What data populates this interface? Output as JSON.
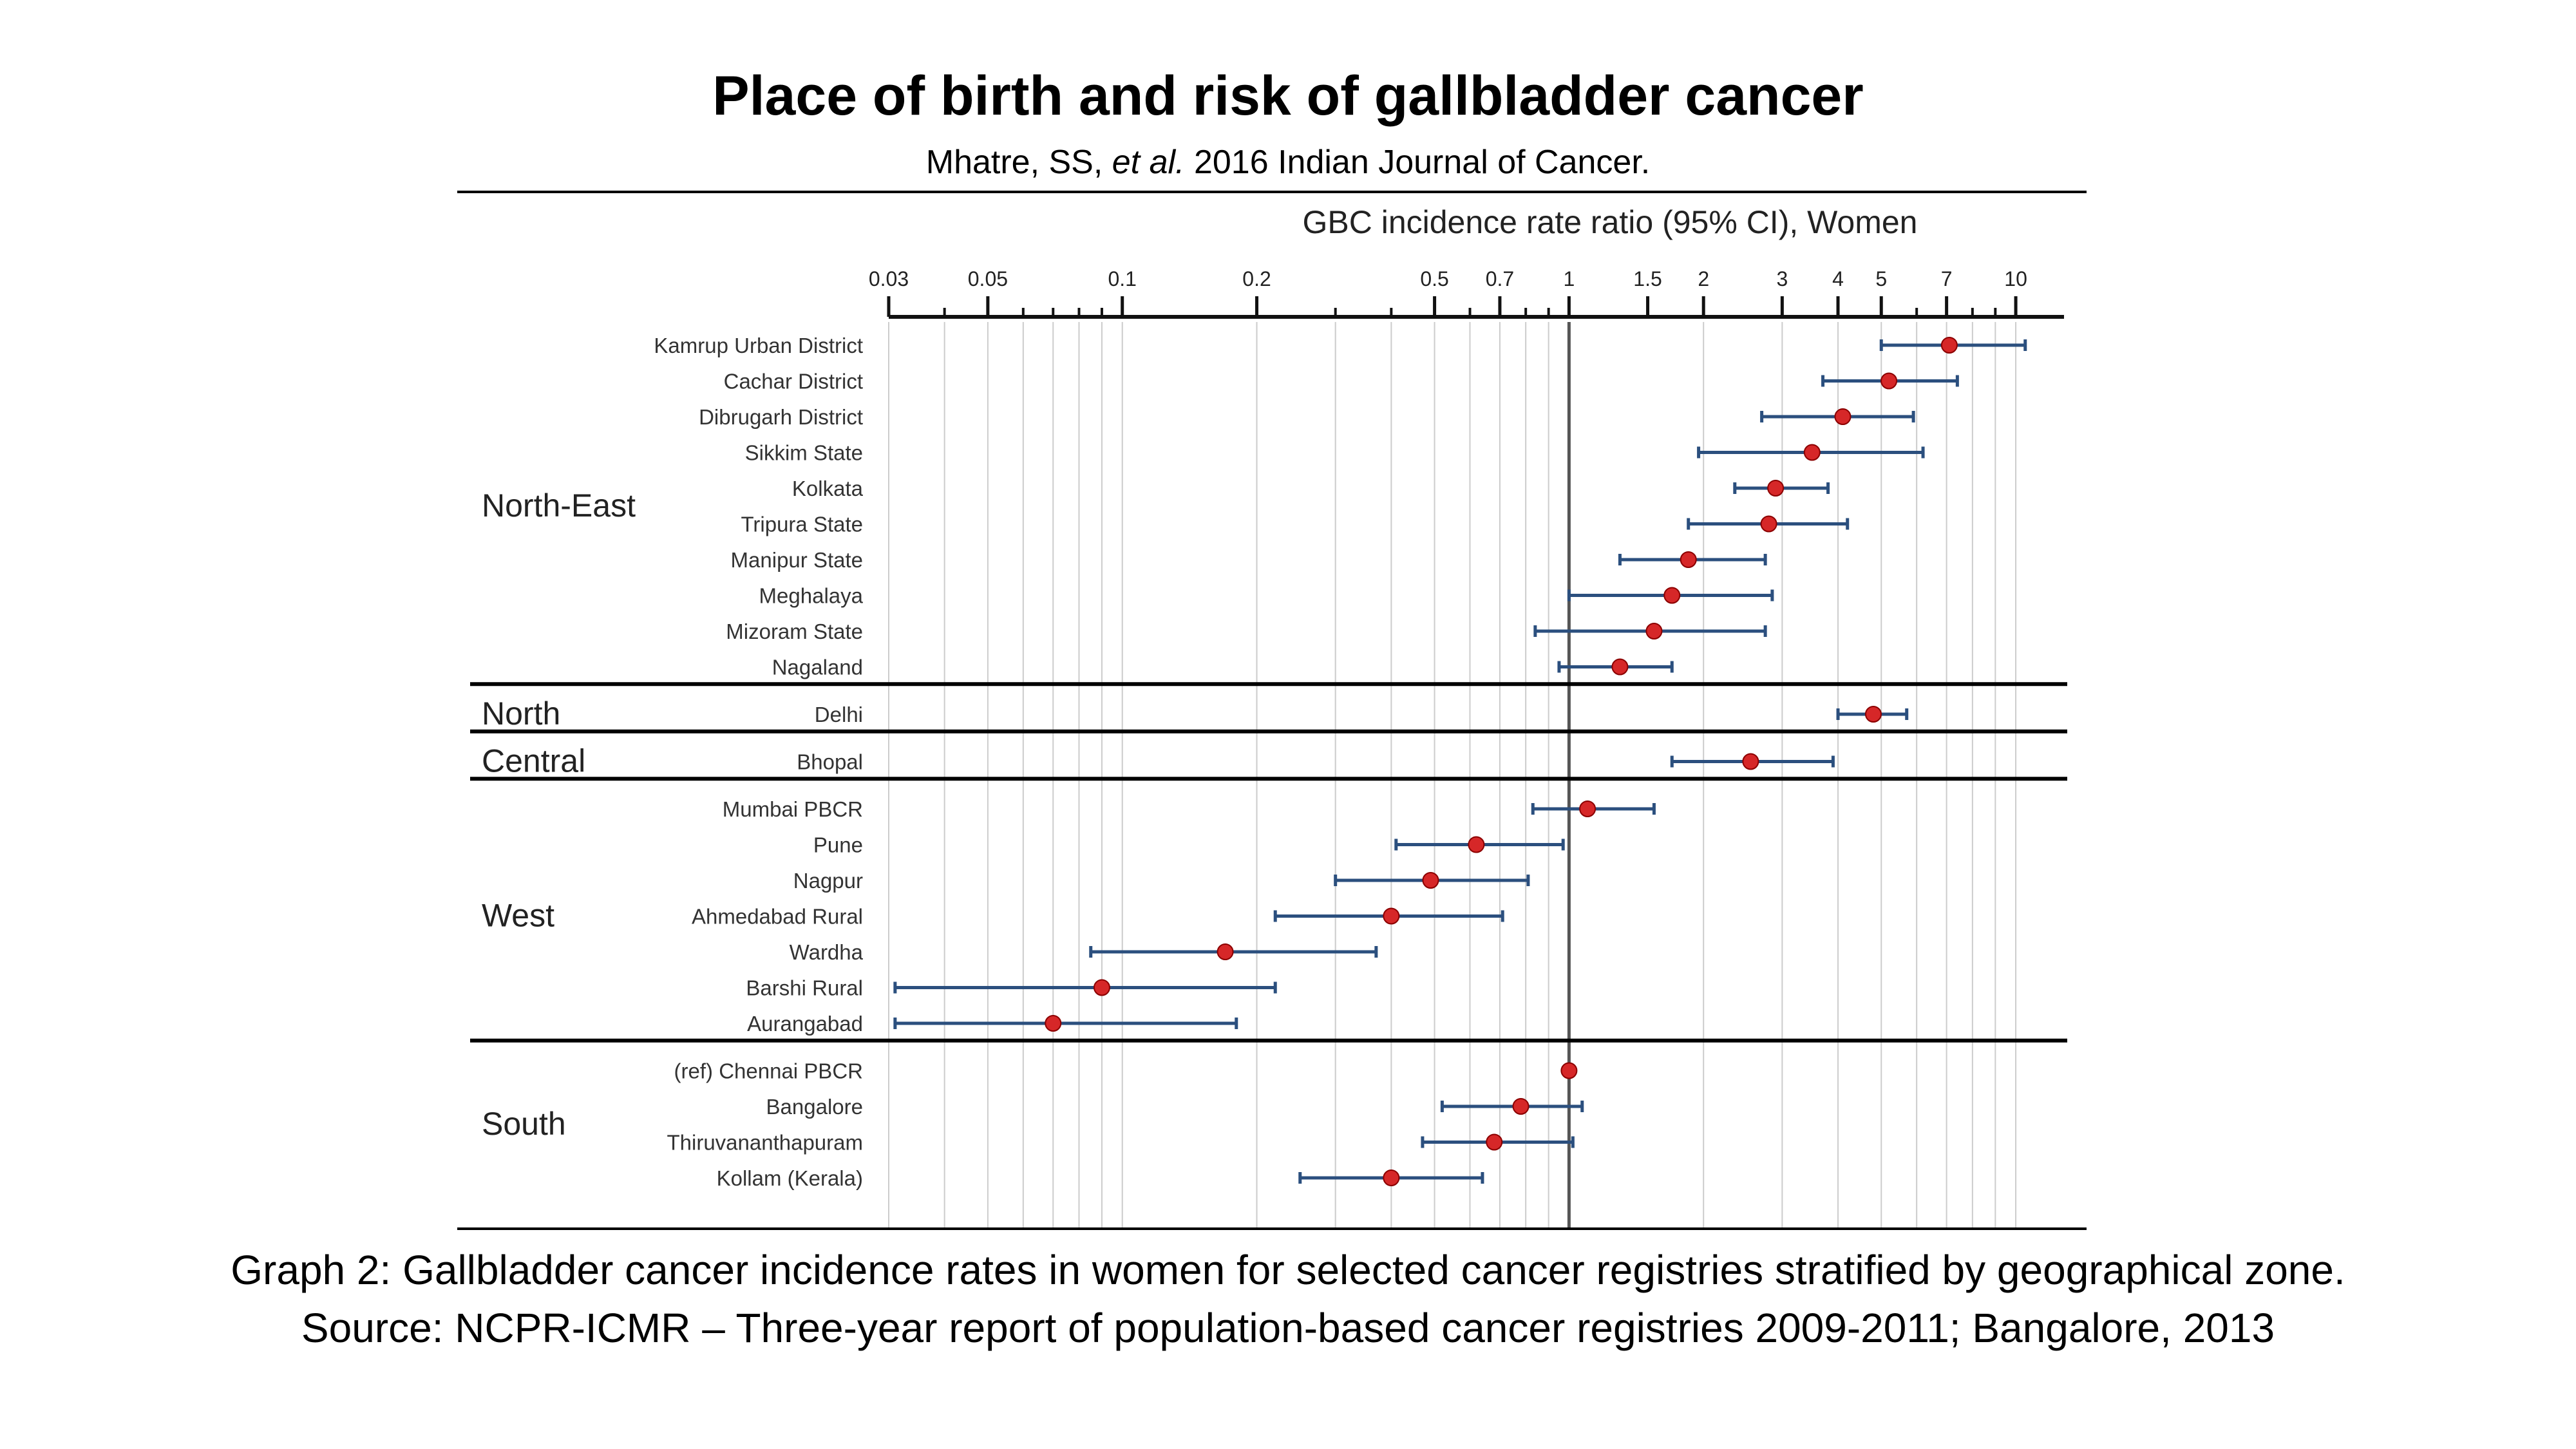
{
  "header": {
    "title": "Place of birth and risk of gallbladder cancer",
    "subtitle_prefix": "Mhatre, SS, ",
    "subtitle_italic": "et al.",
    "subtitle_suffix": " 2016 Indian Journal of Cancer."
  },
  "footer": {
    "caption_line1": "Graph 2: Gallbladder cancer incidence rates in women for selected cancer registries stratified by geographical zone.",
    "caption_line2": "Source: NCPR-ICMR – Three-year report of population-based cancer registries 2009-2011; Bangalore, 2013"
  },
  "colors": {
    "point": "#d62728",
    "ci_line": "#2b4f7e",
    "grid": "#cccccc",
    "reference_line": "#555555",
    "rule": "#000000"
  },
  "chart_data": {
    "type": "forest",
    "title": "GBC incidence rate ratio (95% CI), Women",
    "x_scale": "log",
    "xlim": [
      0.03,
      12
    ],
    "x_ticks": [
      0.03,
      0.05,
      0.1,
      0.2,
      0.5,
      0.7,
      1,
      1.5,
      2,
      3,
      4,
      5,
      7,
      10
    ],
    "x_tick_labels": [
      "0.03",
      "0.05",
      "0.1",
      "0.2",
      "0.5",
      "0.7",
      "1",
      "1.5",
      "2",
      "3",
      "4",
      "5",
      "7",
      "10"
    ],
    "reference_value": 1,
    "grid": true,
    "groups": [
      {
        "name": "North-East",
        "rows": [
          {
            "label": "Kamrup Urban District",
            "estimate": 7.1,
            "ci": [
              5.0,
              10.5
            ]
          },
          {
            "label": "Cachar District",
            "estimate": 5.2,
            "ci": [
              3.7,
              7.4
            ]
          },
          {
            "label": "Dibrugarh District",
            "estimate": 4.1,
            "ci": [
              2.7,
              5.9
            ]
          },
          {
            "label": "Sikkim State",
            "estimate": 3.5,
            "ci": [
              1.95,
              6.2
            ]
          },
          {
            "label": "Kolkata",
            "estimate": 2.9,
            "ci": [
              2.35,
              3.8
            ]
          },
          {
            "label": "Tripura State",
            "estimate": 2.8,
            "ci": [
              1.85,
              4.2
            ]
          },
          {
            "label": "Manipur State",
            "estimate": 1.85,
            "ci": [
              1.3,
              2.75
            ]
          },
          {
            "label": "Meghalaya",
            "estimate": 1.7,
            "ci": [
              1.0,
              2.85
            ]
          },
          {
            "label": "Mizoram State",
            "estimate": 1.55,
            "ci": [
              0.84,
              2.75
            ]
          },
          {
            "label": "Nagaland",
            "estimate": 1.3,
            "ci": [
              0.95,
              1.7
            ]
          }
        ]
      },
      {
        "name": "North",
        "rows": [
          {
            "label": "Delhi",
            "estimate": 4.8,
            "ci": [
              4.0,
              5.7
            ]
          }
        ]
      },
      {
        "name": "Central",
        "rows": [
          {
            "label": "Bhopal",
            "estimate": 2.55,
            "ci": [
              1.7,
              3.9
            ]
          }
        ]
      },
      {
        "name": "West",
        "rows": [
          {
            "label": "Mumbai PBCR",
            "estimate": 1.1,
            "ci": [
              0.83,
              1.55
            ]
          },
          {
            "label": "Pune",
            "estimate": 0.62,
            "ci": [
              0.41,
              0.97
            ]
          },
          {
            "label": "Nagpur",
            "estimate": 0.49,
            "ci": [
              0.3,
              0.81
            ]
          },
          {
            "label": "Ahmedabad Rural",
            "estimate": 0.4,
            "ci": [
              0.22,
              0.71
            ]
          },
          {
            "label": "Wardha",
            "estimate": 0.17,
            "ci": [
              0.085,
              0.37
            ]
          },
          {
            "label": "Barshi Rural",
            "estimate": 0.09,
            "ci": [
              0.031,
              0.22
            ]
          },
          {
            "label": "Aurangabad",
            "estimate": 0.07,
            "ci": [
              0.031,
              0.18
            ]
          }
        ]
      },
      {
        "name": "South",
        "rows": [
          {
            "label": "(ref) Chennai PBCR",
            "estimate": 1.0,
            "ci": [
              1.0,
              1.0
            ]
          },
          {
            "label": "Bangalore",
            "estimate": 0.78,
            "ci": [
              0.52,
              1.07
            ]
          },
          {
            "label": "Thiruvananthapuram",
            "estimate": 0.68,
            "ci": [
              0.47,
              1.02
            ]
          },
          {
            "label": "Kollam (Kerala)",
            "estimate": 0.4,
            "ci": [
              0.25,
              0.64
            ]
          }
        ]
      }
    ]
  }
}
